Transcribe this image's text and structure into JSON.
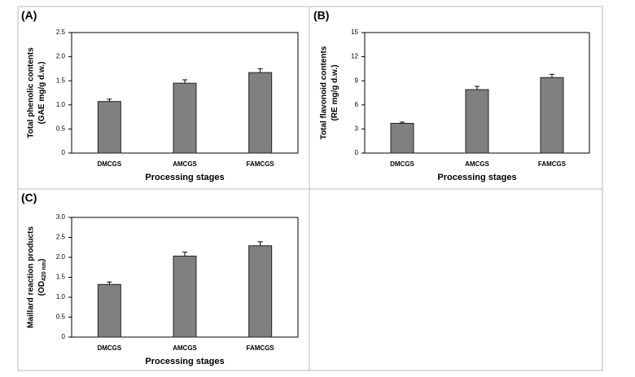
{
  "chart_data": [
    {
      "type": "bar",
      "panel_label": "(A)",
      "x_label": "Processing stages",
      "y_label": "Total phenolic contents",
      "y_label_2_parts": [
        "(GAE mg/g d.w.)"
      ],
      "categories": [
        "DMCGS",
        "AMCGS",
        "FAMCGS"
      ],
      "values": [
        1.07,
        1.45,
        1.67
      ],
      "errors": [
        0.05,
        0.07,
        0.08
      ],
      "color": "#808080",
      "ylim": [
        0,
        2.5
      ],
      "yticks": [
        0,
        0.5,
        {
          "value": 1,
          "label": "1.0"
        },
        1.5,
        {
          "value": 2,
          "label": "2.0"
        },
        2.5
      ]
    },
    {
      "type": "bar",
      "panel_label": "(B)",
      "x_label": "Processing stages",
      "y_label": "Total flavonoid contents",
      "y_label_2_parts": [
        "(RE mg/g d.w.)"
      ],
      "categories": [
        "DMCGS",
        "AMCGS",
        "FAMCGS"
      ],
      "values": [
        3.7,
        7.9,
        9.4
      ],
      "errors": [
        0.15,
        0.4,
        0.4
      ],
      "color": "#808080",
      "ylim": [
        0,
        15
      ],
      "yticks": [
        0,
        3,
        6,
        9,
        12,
        15
      ]
    },
    {
      "type": "bar",
      "panel_label": "(C)",
      "x_label": "Processing stages",
      "y_label": "Maillard reaction products",
      "y_label_2_parts": [
        "(OD",
        "420 nm",
        ")"
      ],
      "categories": [
        "DMCGS",
        "AMCGS",
        "FAMCGS"
      ],
      "values": [
        1.32,
        2.03,
        2.29
      ],
      "errors": [
        0.06,
        0.1,
        0.1
      ],
      "color": "#808080",
      "ylim": [
        0,
        3
      ],
      "yticks": [
        0,
        0.5,
        {
          "value": 1,
          "label": "1.0"
        },
        1.5,
        {
          "value": 2,
          "label": "2.0"
        },
        2.5,
        {
          "value": 3,
          "label": "3.0"
        }
      ]
    }
  ]
}
